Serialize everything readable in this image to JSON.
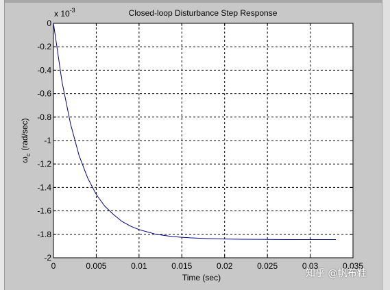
{
  "chart_data": {
    "type": "line",
    "title": "Closed-loop Disturbance Step Response",
    "xlabel": "Time (sec)",
    "ylabel_symbol": "ω",
    "ylabel_subscript": "c",
    "ylabel_units": "(rad/sec)",
    "y_multiplier": "x 10",
    "y_multiplier_exp": "-3",
    "xlim": [
      0,
      0.035
    ],
    "ylim": [
      -2,
      0
    ],
    "xticks": [
      "0",
      "0.005",
      "0.01",
      "0.015",
      "0.02",
      "0.025",
      "0.03",
      "0.035"
    ],
    "yticks": [
      "0",
      "-0.2",
      "-0.4",
      "-0.6",
      "-0.8",
      "-1",
      "-1.2",
      "-1.4",
      "-1.6",
      "-1.8",
      "-2"
    ],
    "grid": true,
    "series": [
      {
        "color": "#000080",
        "x": [
          0,
          0.001,
          0.002,
          0.003,
          0.004,
          0.005,
          0.006,
          0.007,
          0.008,
          0.009,
          0.01,
          0.011,
          0.012,
          0.013,
          0.014,
          0.015,
          0.016,
          0.017,
          0.018,
          0.019,
          0.02,
          0.022,
          0.024,
          0.026,
          0.028,
          0.03,
          0.032,
          0.033
        ],
        "y": [
          0,
          -0.5,
          -0.86,
          -1.13,
          -1.32,
          -1.46,
          -1.56,
          -1.63,
          -1.69,
          -1.73,
          -1.76,
          -1.78,
          -1.8,
          -1.81,
          -1.82,
          -1.825,
          -1.83,
          -1.833,
          -1.836,
          -1.838,
          -1.84,
          -1.842,
          -1.843,
          -1.844,
          -1.845,
          -1.845,
          -1.845,
          -1.845
        ]
      }
    ]
  },
  "watermark": "知乎 @帆布鞋"
}
